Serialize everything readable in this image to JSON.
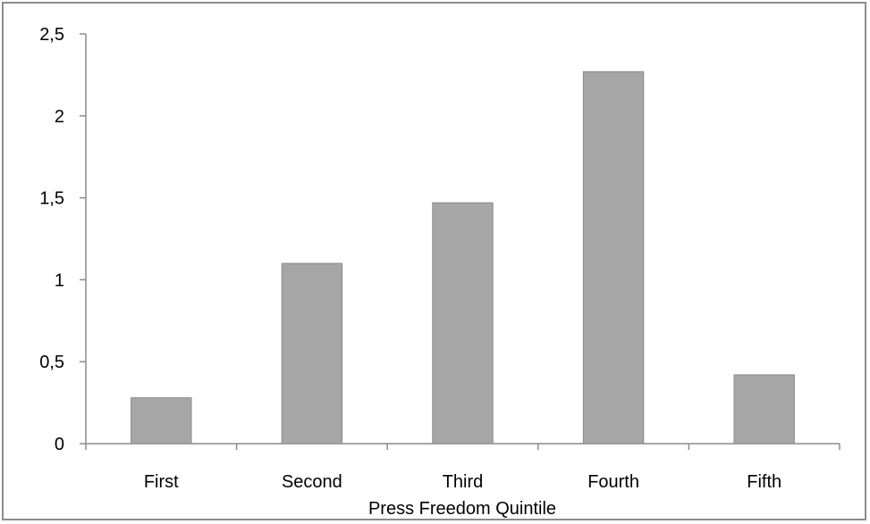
{
  "chart_data": {
    "type": "bar",
    "categories": [
      "First",
      "Second",
      "Third",
      "Fourth",
      "Fifth"
    ],
    "values": [
      0.28,
      1.1,
      1.47,
      2.27,
      0.42
    ],
    "title": "",
    "xlabel": "Press Freedom Quintile",
    "ylabel": "",
    "ylim": [
      0,
      2.5
    ],
    "yticks": [
      0,
      0.5,
      1,
      1.5,
      2,
      2.5
    ],
    "ytick_labels": [
      "0",
      "0,5",
      "1",
      "1,5",
      "2",
      "2,5"
    ],
    "grid": false,
    "legend": "none",
    "colors": {
      "bar": "#a6a6a6",
      "bar_edge": "#8c8c8c",
      "axis": "#8c8c8c",
      "frame": "#8c8c8c"
    }
  }
}
